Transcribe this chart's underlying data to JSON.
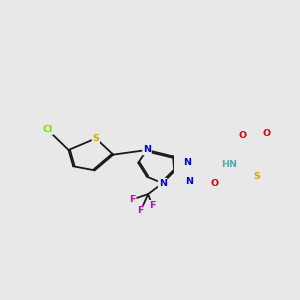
{
  "bg": "#e8e8e8",
  "bc": "#1a1a1a",
  "lw": 1.3,
  "dbo": 0.008,
  "colors": {
    "S": "#ccaa00",
    "N": "#0000ee",
    "O": "#dd0000",
    "Cl": "#77dd00",
    "F": "#cc00cc",
    "HN": "#55aaaa",
    "C": "#1a1a1a"
  },
  "fs": 6.8
}
